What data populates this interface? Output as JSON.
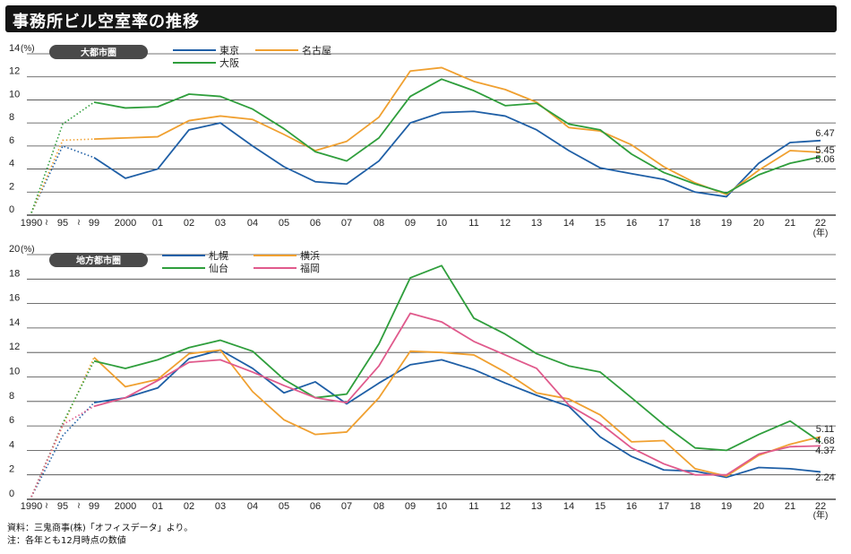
{
  "title": "事務所ビル空室率の推移",
  "footnotes": [
    "資料：三鬼商事(株)「オフィスデータ」より。",
    "注：各年とも12月時点の数値"
  ],
  "chart_data": [
    {
      "type": "line",
      "panel_label": "大都市圏",
      "unit_label": "(%)",
      "year_label": "(年)",
      "x_tick_labels": [
        "1990",
        "95",
        "99",
        "2000",
        "01",
        "02",
        "03",
        "04",
        "05",
        "06",
        "07",
        "08",
        "09",
        "10",
        "11",
        "12",
        "13",
        "14",
        "15",
        "16",
        "17",
        "18",
        "19",
        "20",
        "21",
        "22"
      ],
      "ylim": [
        0,
        14
      ],
      "yticks": [
        0,
        2,
        4,
        6,
        8,
        10,
        12,
        14
      ],
      "grid": true,
      "legend_position": "top",
      "colors": {
        "東京": "#1f5fa6",
        "名古屋": "#f0a030",
        "大阪": "#2f9e3c"
      },
      "series": [
        {
          "name": "東京",
          "early": [
            0.2,
            6.0,
            5.0
          ],
          "values": [
            5.0,
            3.2,
            4.0,
            7.4,
            8.0,
            6.0,
            4.2,
            2.9,
            2.7,
            4.7,
            8.0,
            8.9,
            9.0,
            8.6,
            7.4,
            5.6,
            4.1,
            3.6,
            3.1,
            2.0,
            1.6,
            4.5,
            6.3,
            6.47
          ]
        },
        {
          "name": "名古屋",
          "early": [
            0.2,
            6.5,
            6.6
          ],
          "values": [
            6.6,
            6.7,
            6.8,
            8.2,
            8.6,
            8.3,
            7.0,
            5.6,
            6.4,
            8.5,
            12.5,
            12.8,
            11.6,
            10.9,
            9.8,
            7.6,
            7.3,
            6.1,
            4.2,
            2.8,
            1.8,
            3.9,
            5.6,
            5.45
          ]
        },
        {
          "name": "大阪",
          "early": [
            0.2,
            7.9,
            9.8
          ],
          "values": [
            9.8,
            9.3,
            9.4,
            10.5,
            10.3,
            9.2,
            7.5,
            5.5,
            4.7,
            6.7,
            10.3,
            11.8,
            10.8,
            9.5,
            9.7,
            7.9,
            7.4,
            5.3,
            3.7,
            2.7,
            1.9,
            3.5,
            4.5,
            5.06
          ]
        }
      ],
      "data_labels": [
        "6.47",
        "5.45",
        "5.06"
      ]
    },
    {
      "type": "line",
      "panel_label": "地方都市圏",
      "unit_label": "(%)",
      "year_label": "(年)",
      "x_tick_labels": [
        "1990",
        "95",
        "99",
        "2000",
        "01",
        "02",
        "03",
        "04",
        "05",
        "06",
        "07",
        "08",
        "09",
        "10",
        "11",
        "12",
        "13",
        "14",
        "15",
        "16",
        "17",
        "18",
        "19",
        "20",
        "21",
        "22"
      ],
      "ylim": [
        0,
        20
      ],
      "yticks": [
        0,
        2,
        4,
        6,
        8,
        10,
        12,
        14,
        16,
        18,
        20
      ],
      "grid": true,
      "legend_position": "top",
      "colors": {
        "札幌": "#1f5fa6",
        "横浜": "#f0a030",
        "仙台": "#2f9e3c",
        "福岡": "#e05a8c"
      },
      "series": [
        {
          "name": "札幌",
          "early": [
            0.2,
            5.2,
            7.9
          ],
          "values": [
            7.9,
            8.3,
            9.1,
            11.5,
            12.2,
            10.7,
            8.7,
            9.6,
            7.8,
            9.5,
            11.0,
            11.4,
            10.6,
            9.5,
            8.5,
            7.6,
            5.1,
            3.5,
            2.4,
            2.3,
            1.8,
            2.6,
            2.5,
            2.24
          ]
        },
        {
          "name": "横浜",
          "early": [
            0.2,
            6.0,
            11.6
          ],
          "values": [
            11.6,
            9.2,
            9.8,
            11.9,
            12.2,
            8.8,
            6.5,
            5.3,
            5.5,
            8.3,
            12.1,
            12.0,
            11.8,
            10.4,
            8.7,
            8.2,
            6.9,
            4.7,
            4.8,
            2.5,
            1.9,
            3.6,
            4.5,
            5.11
          ]
        },
        {
          "name": "仙台",
          "early": [
            0.2,
            6.2,
            11.3
          ],
          "values": [
            11.3,
            10.7,
            11.4,
            12.4,
            13.0,
            12.1,
            9.8,
            8.3,
            8.6,
            12.7,
            18.1,
            19.1,
            14.8,
            13.5,
            11.9,
            10.9,
            10.4,
            8.3,
            6.1,
            4.2,
            4.0,
            5.3,
            6.4,
            4.68
          ]
        },
        {
          "name": "福岡",
          "early": [
            0.2,
            6.1,
            7.6
          ],
          "values": [
            7.6,
            8.3,
            9.7,
            11.2,
            11.4,
            10.4,
            9.3,
            8.3,
            7.9,
            10.9,
            15.2,
            14.5,
            12.9,
            11.8,
            10.7,
            7.7,
            6.2,
            4.2,
            2.9,
            2.0,
            2.0,
            3.7,
            4.3,
            4.37
          ]
        }
      ],
      "data_labels": [
        "5.11",
        "4.68",
        "4.37",
        "2.24"
      ]
    }
  ]
}
